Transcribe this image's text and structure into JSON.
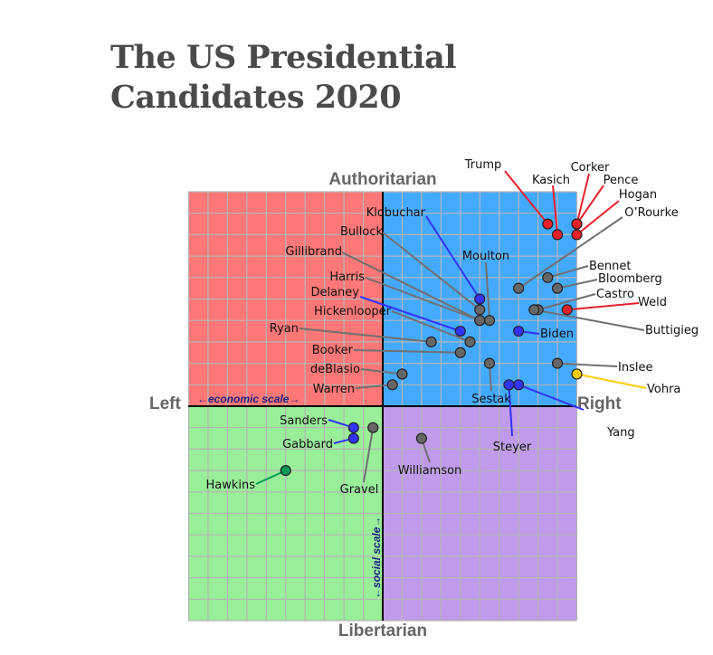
{
  "title_lines": [
    "The US Presidential",
    "Candidates 2020"
  ],
  "chart_data": {
    "type": "scatter",
    "title": "The US Presidential Candidates 2020",
    "axes": {
      "top": "Authoritarian",
      "bottom": "Libertarian",
      "left": "Left",
      "right": "Right",
      "x_scale_label": "←economic scale→",
      "y_scale_label": "←social scale→"
    },
    "xlim": [
      -10,
      10
    ],
    "ylim": [
      -10,
      10
    ],
    "grid": true,
    "quadrant_colors": {
      "top_left": "#ff7777",
      "top_right": "#44aaff",
      "bottom_left": "#99ee99",
      "bottom_right": "#c09aeb"
    },
    "party_colors": {
      "republican": "#e8202a",
      "democrat_blue": "#3333ff",
      "democrat": "#666666",
      "libertarian": "#ffcc00",
      "green": "#009955"
    },
    "points": [
      {
        "name": "Trump",
        "x": 8.5,
        "y": 8.5,
        "group": "republican"
      },
      {
        "name": "Kasich",
        "x": 9.0,
        "y": 8.0,
        "group": "republican"
      },
      {
        "name": "Corker",
        "x": 10.0,
        "y": 8.5,
        "group": "republican"
      },
      {
        "name": "Pence",
        "x": 10.0,
        "y": 8.5,
        "group": "republican"
      },
      {
        "name": "Hogan",
        "x": 10.0,
        "y": 8.0,
        "group": "republican"
      },
      {
        "name": "O’Rourke",
        "x": 7.0,
        "y": 5.5,
        "group": "democrat"
      },
      {
        "name": "Bennet",
        "x": 8.5,
        "y": 6.0,
        "group": "democrat"
      },
      {
        "name": "Bloomberg",
        "x": 9.0,
        "y": 5.5,
        "group": "democrat"
      },
      {
        "name": "Castro",
        "x": 8.0,
        "y": 4.5,
        "group": "democrat"
      },
      {
        "name": "Buttigieg",
        "x": 7.8,
        "y": 4.5,
        "group": "democrat"
      },
      {
        "name": "Weld",
        "x": 9.5,
        "y": 4.5,
        "group": "republican"
      },
      {
        "name": "Biden",
        "x": 7.0,
        "y": 3.5,
        "group": "democrat_blue"
      },
      {
        "name": "Inslee",
        "x": 9.0,
        "y": 2.0,
        "group": "democrat"
      },
      {
        "name": "Vohra",
        "x": 10.0,
        "y": 1.5,
        "group": "libertarian"
      },
      {
        "name": "Yang",
        "x": 7.0,
        "y": 1.0,
        "group": "democrat_blue"
      },
      {
        "name": "Steyer",
        "x": 6.5,
        "y": 1.0,
        "group": "democrat_blue"
      },
      {
        "name": "Sestak",
        "x": 5.5,
        "y": 2.0,
        "group": "democrat"
      },
      {
        "name": "Moulton",
        "x": 5.5,
        "y": 4.0,
        "group": "democrat"
      },
      {
        "name": "Klobuchar",
        "x": 5.0,
        "y": 5.0,
        "group": "democrat_blue"
      },
      {
        "name": "Bullock",
        "x": 5.0,
        "y": 4.5,
        "group": "democrat"
      },
      {
        "name": "Gillibrand",
        "x": 5.0,
        "y": 4.0,
        "group": "democrat"
      },
      {
        "name": "Harris",
        "x": 5.0,
        "y": 4.0,
        "group": "democrat"
      },
      {
        "name": "Delaney",
        "x": 4.0,
        "y": 3.5,
        "group": "democrat_blue"
      },
      {
        "name": "Hickenlooper",
        "x": 4.5,
        "y": 3.0,
        "group": "democrat"
      },
      {
        "name": "Ryan",
        "x": 2.5,
        "y": 3.0,
        "group": "democrat"
      },
      {
        "name": "Booker",
        "x": 4.0,
        "y": 2.5,
        "group": "democrat"
      },
      {
        "name": "deBlasio",
        "x": 1.0,
        "y": 1.5,
        "group": "democrat"
      },
      {
        "name": "Warren",
        "x": 0.5,
        "y": 1.0,
        "group": "democrat"
      },
      {
        "name": "Sanders",
        "x": -1.5,
        "y": -1.0,
        "group": "democrat_blue"
      },
      {
        "name": "Gabbard",
        "x": -1.5,
        "y": -1.5,
        "group": "democrat_blue"
      },
      {
        "name": "Gravel",
        "x": -0.5,
        "y": -1.0,
        "group": "democrat"
      },
      {
        "name": "Hawkins",
        "x": -5.0,
        "y": -3.0,
        "group": "green"
      },
      {
        "name": "Williamson",
        "x": 2.0,
        "y": -1.5,
        "group": "democrat"
      }
    ]
  }
}
